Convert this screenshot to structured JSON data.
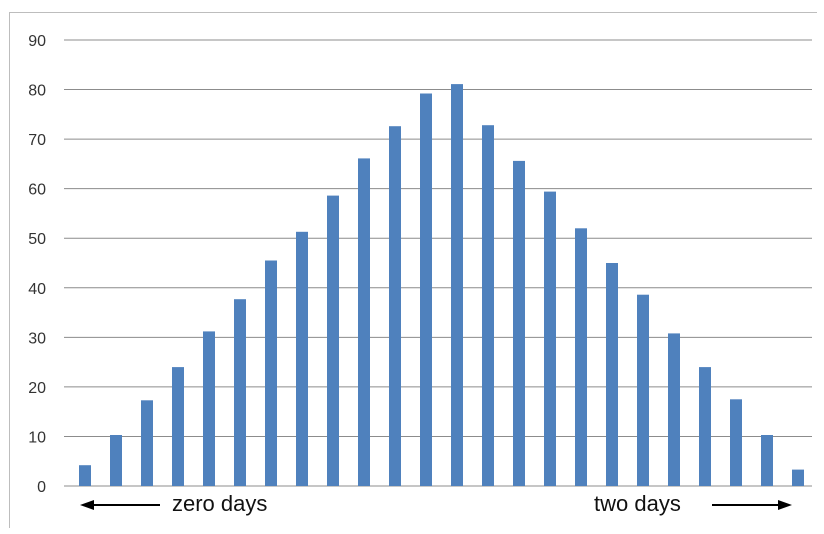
{
  "chart_data": {
    "type": "bar",
    "title": "",
    "xlabel": "",
    "ylabel": "",
    "ylim": [
      0,
      90
    ],
    "yticks": [
      0,
      10,
      20,
      30,
      40,
      50,
      60,
      70,
      80,
      90
    ],
    "grid": true,
    "values": [
      4.2,
      10.3,
      17.3,
      24,
      31.2,
      37.7,
      45.5,
      51.3,
      58.6,
      66.1,
      72.6,
      79.2,
      81.1,
      72.8,
      65.6,
      59.4,
      52,
      45,
      38.6,
      30.8,
      24,
      17.5,
      10.3,
      3.3
    ],
    "annotations": {
      "left": "zero days",
      "right": "two days"
    },
    "colors": {
      "bar": "#4f81bd",
      "grid": "#8c8c8c",
      "arrow": "#000000"
    }
  }
}
